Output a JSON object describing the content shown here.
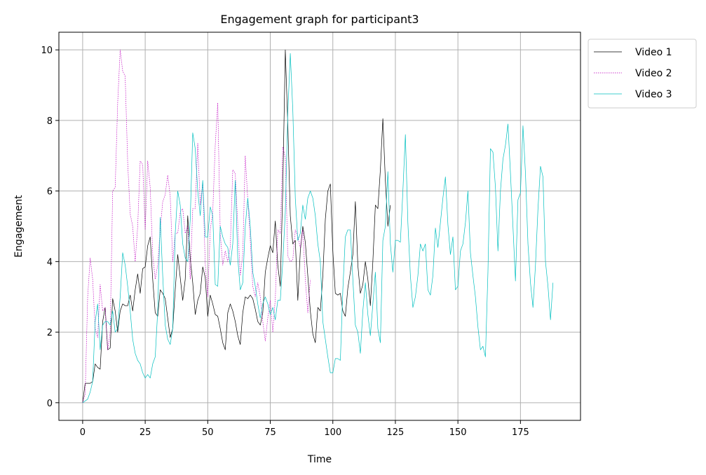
{
  "chart_data": {
    "type": "line",
    "title": "Engagement graph for participant3",
    "xlabel": "Time",
    "ylabel": "Engagement",
    "xlim": [
      -9.5,
      199
    ],
    "ylim": [
      -0.5,
      10.5
    ],
    "xticks": [
      0,
      25,
      50,
      75,
      100,
      125,
      150,
      175
    ],
    "yticks": [
      0,
      2,
      4,
      6,
      8,
      10
    ],
    "grid": true,
    "legend": "outside-top-right",
    "series": [
      {
        "name": "Video 1",
        "color": "#000000",
        "dash": "solid",
        "values": [
          0.0,
          0.55,
          0.55,
          0.55,
          0.6,
          1.1,
          1.0,
          0.95,
          2.3,
          2.7,
          1.5,
          1.55,
          2.95,
          2.6,
          2.0,
          2.6,
          2.8,
          2.75,
          2.75,
          3.05,
          2.6,
          3.2,
          3.65,
          3.1,
          3.8,
          3.85,
          4.45,
          4.7,
          3.5,
          2.55,
          2.45,
          3.2,
          3.1,
          2.95,
          2.4,
          1.85,
          2.1,
          3.2,
          4.2,
          3.55,
          2.9,
          3.5,
          5.3,
          4.1,
          3.4,
          2.5,
          2.9,
          3.1,
          3.85,
          3.55,
          2.45,
          3.05,
          2.8,
          2.5,
          2.45,
          2.1,
          1.7,
          1.5,
          2.55,
          2.8,
          2.6,
          2.3,
          1.9,
          1.65,
          2.55,
          3.0,
          2.95,
          3.05,
          2.95,
          2.65,
          2.3,
          2.2,
          2.55,
          3.7,
          4.1,
          4.45,
          4.25,
          5.15,
          3.9,
          3.3,
          6.1,
          10.0,
          7.9,
          5.3,
          4.5,
          4.6,
          2.9,
          4.3,
          5.0,
          4.55,
          3.6,
          2.6,
          1.95,
          1.7,
          2.7,
          2.6,
          3.6,
          5.2,
          6.0,
          6.2,
          4.3,
          3.1,
          3.05,
          3.1,
          2.6,
          2.45,
          3.25,
          3.7,
          4.2,
          5.7,
          3.9,
          3.1,
          3.35,
          4.0,
          3.5,
          2.75,
          4.0,
          5.6,
          5.5,
          6.6,
          8.05,
          6.3,
          5.0,
          5.6
        ],
        "x_start": 0,
        "x_step": 1
      },
      {
        "name": "Video 2",
        "color": "#bf00bf",
        "dash": "dotted",
        "values": [
          0.0,
          0.25,
          3.0,
          4.1,
          3.5,
          2.1,
          1.85,
          3.35,
          2.6,
          2.7,
          1.5,
          2.0,
          6.0,
          6.1,
          8.5,
          10.0,
          9.4,
          9.25,
          6.8,
          5.35,
          5.0,
          4.0,
          5.0,
          6.85,
          6.75,
          4.9,
          6.85,
          6.1,
          4.2,
          3.5,
          3.9,
          4.9,
          5.7,
          5.9,
          6.45,
          5.85,
          4.0,
          4.8,
          4.8,
          5.4,
          5.5,
          4.8,
          5.0,
          3.5,
          5.5,
          5.5,
          7.35,
          5.6,
          6.25,
          3.95,
          3.0,
          4.9,
          5.4,
          7.3,
          8.5,
          4.8,
          3.9,
          4.3,
          4.0,
          4.4,
          6.6,
          6.5,
          5.05,
          3.6,
          4.2,
          7.0,
          5.75,
          4.6,
          3.3,
          3.0,
          3.4,
          3.0,
          2.3,
          1.75,
          2.4,
          2.9,
          2.0,
          2.95,
          4.9,
          4.8,
          7.25,
          6.95,
          4.15,
          4.0,
          4.05,
          4.9,
          4.7,
          4.4,
          4.9,
          3.5,
          2.55,
          3.5
        ],
        "x_start": 0,
        "x_step": 1
      },
      {
        "name": "Video 3",
        "color": "#00bfbf",
        "dash": "solid",
        "values": [
          0.0,
          0.05,
          0.1,
          0.3,
          0.6,
          2.3,
          2.8,
          1.5,
          2.2,
          2.3,
          2.3,
          2.2,
          2.6,
          2.0,
          2.1,
          3.0,
          4.25,
          3.9,
          3.3,
          2.6,
          1.8,
          1.4,
          1.2,
          1.1,
          0.85,
          0.7,
          0.8,
          0.7,
          1.1,
          1.3,
          2.6,
          5.25,
          3.6,
          2.2,
          1.8,
          1.65,
          2.1,
          4.8,
          6.0,
          5.6,
          4.5,
          4.1,
          4.0,
          5.2,
          7.65,
          7.2,
          6.0,
          5.3,
          6.3,
          4.7,
          4.7,
          5.55,
          5.3,
          3.35,
          3.3,
          5.0,
          4.7,
          4.5,
          4.4,
          3.9,
          4.5,
          6.3,
          4.1,
          3.2,
          3.4,
          5.0,
          5.8,
          5.0,
          3.7,
          3.3,
          2.8,
          2.4,
          2.8,
          3.0,
          2.8,
          2.5,
          2.7,
          2.35,
          2.9,
          2.9,
          4.0,
          5.4,
          8.2,
          9.9,
          8.3,
          5.8,
          4.6,
          4.8,
          5.6,
          5.2,
          5.8,
          6.0,
          5.8,
          5.3,
          4.5,
          4.0,
          2.3,
          1.8,
          1.3,
          0.85,
          0.85,
          1.25,
          1.25,
          1.2,
          3.2,
          4.7,
          4.9,
          4.9,
          3.5,
          2.2,
          2.0,
          1.4,
          2.6,
          3.4,
          2.5,
          1.9,
          2.8,
          3.7,
          2.1,
          1.7,
          4.6,
          5.0,
          6.55,
          4.5,
          3.7,
          4.6,
          4.6,
          4.55,
          6.0,
          7.6,
          5.1,
          3.6,
          2.7,
          3.0,
          3.6,
          4.5,
          4.3,
          4.5,
          3.2,
          3.05,
          3.6,
          4.95,
          4.4,
          5.1,
          5.8,
          6.4,
          5.05,
          4.2,
          4.7,
          3.2,
          3.3,
          4.3,
          4.5,
          5.1,
          6.0,
          4.25,
          3.6,
          3.0,
          2.15,
          1.5,
          1.6,
          1.3,
          3.7,
          7.2,
          7.1,
          6.1,
          4.3,
          6.0,
          6.9,
          7.3,
          7.9,
          6.5,
          5.0,
          3.45,
          5.75,
          5.95,
          7.85,
          6.5,
          4.5,
          3.4,
          2.7,
          3.9,
          5.5,
          6.7,
          6.4,
          4.0,
          3.3,
          2.35,
          3.4
        ],
        "x_start": 0,
        "x_step": 1
      }
    ]
  }
}
